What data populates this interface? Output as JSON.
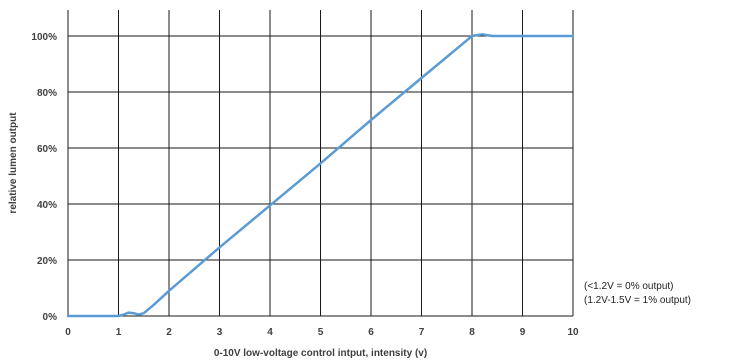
{
  "chart_data": {
    "type": "line",
    "xlabel": "0-10V low-voltage control  intput, intensity  (v)",
    "ylabel": "relative lumen output",
    "xlim": [
      0,
      10
    ],
    "ylim": [
      0,
      100
    ],
    "x_ticks": [
      "0",
      "1",
      "2",
      "3",
      "4",
      "5",
      "6",
      "7",
      "8",
      "9",
      "10"
    ],
    "y_ticks": [
      "0%",
      "20%",
      "40%",
      "60%",
      "80%",
      "100%"
    ],
    "grid": true,
    "line_color": "#5b9bd5",
    "series": [
      {
        "x": [
          0,
          1.0,
          1.1,
          1.2,
          1.3,
          1.4,
          1.5,
          1.7,
          2.0,
          3.0,
          4.0,
          5.0,
          6.0,
          7.0,
          7.9,
          8.0,
          8.2,
          8.4,
          10
        ],
        "y": [
          0,
          0,
          0.5,
          1.2,
          1,
          0.5,
          1,
          4,
          9,
          24.5,
          39.5,
          54.5,
          70,
          85,
          98.5,
          100,
          100.6,
          100,
          100
        ]
      }
    ],
    "annotations": [
      "(<1.2V = 0% output)",
      "(1.2V-1.5V = 1% output)"
    ]
  }
}
